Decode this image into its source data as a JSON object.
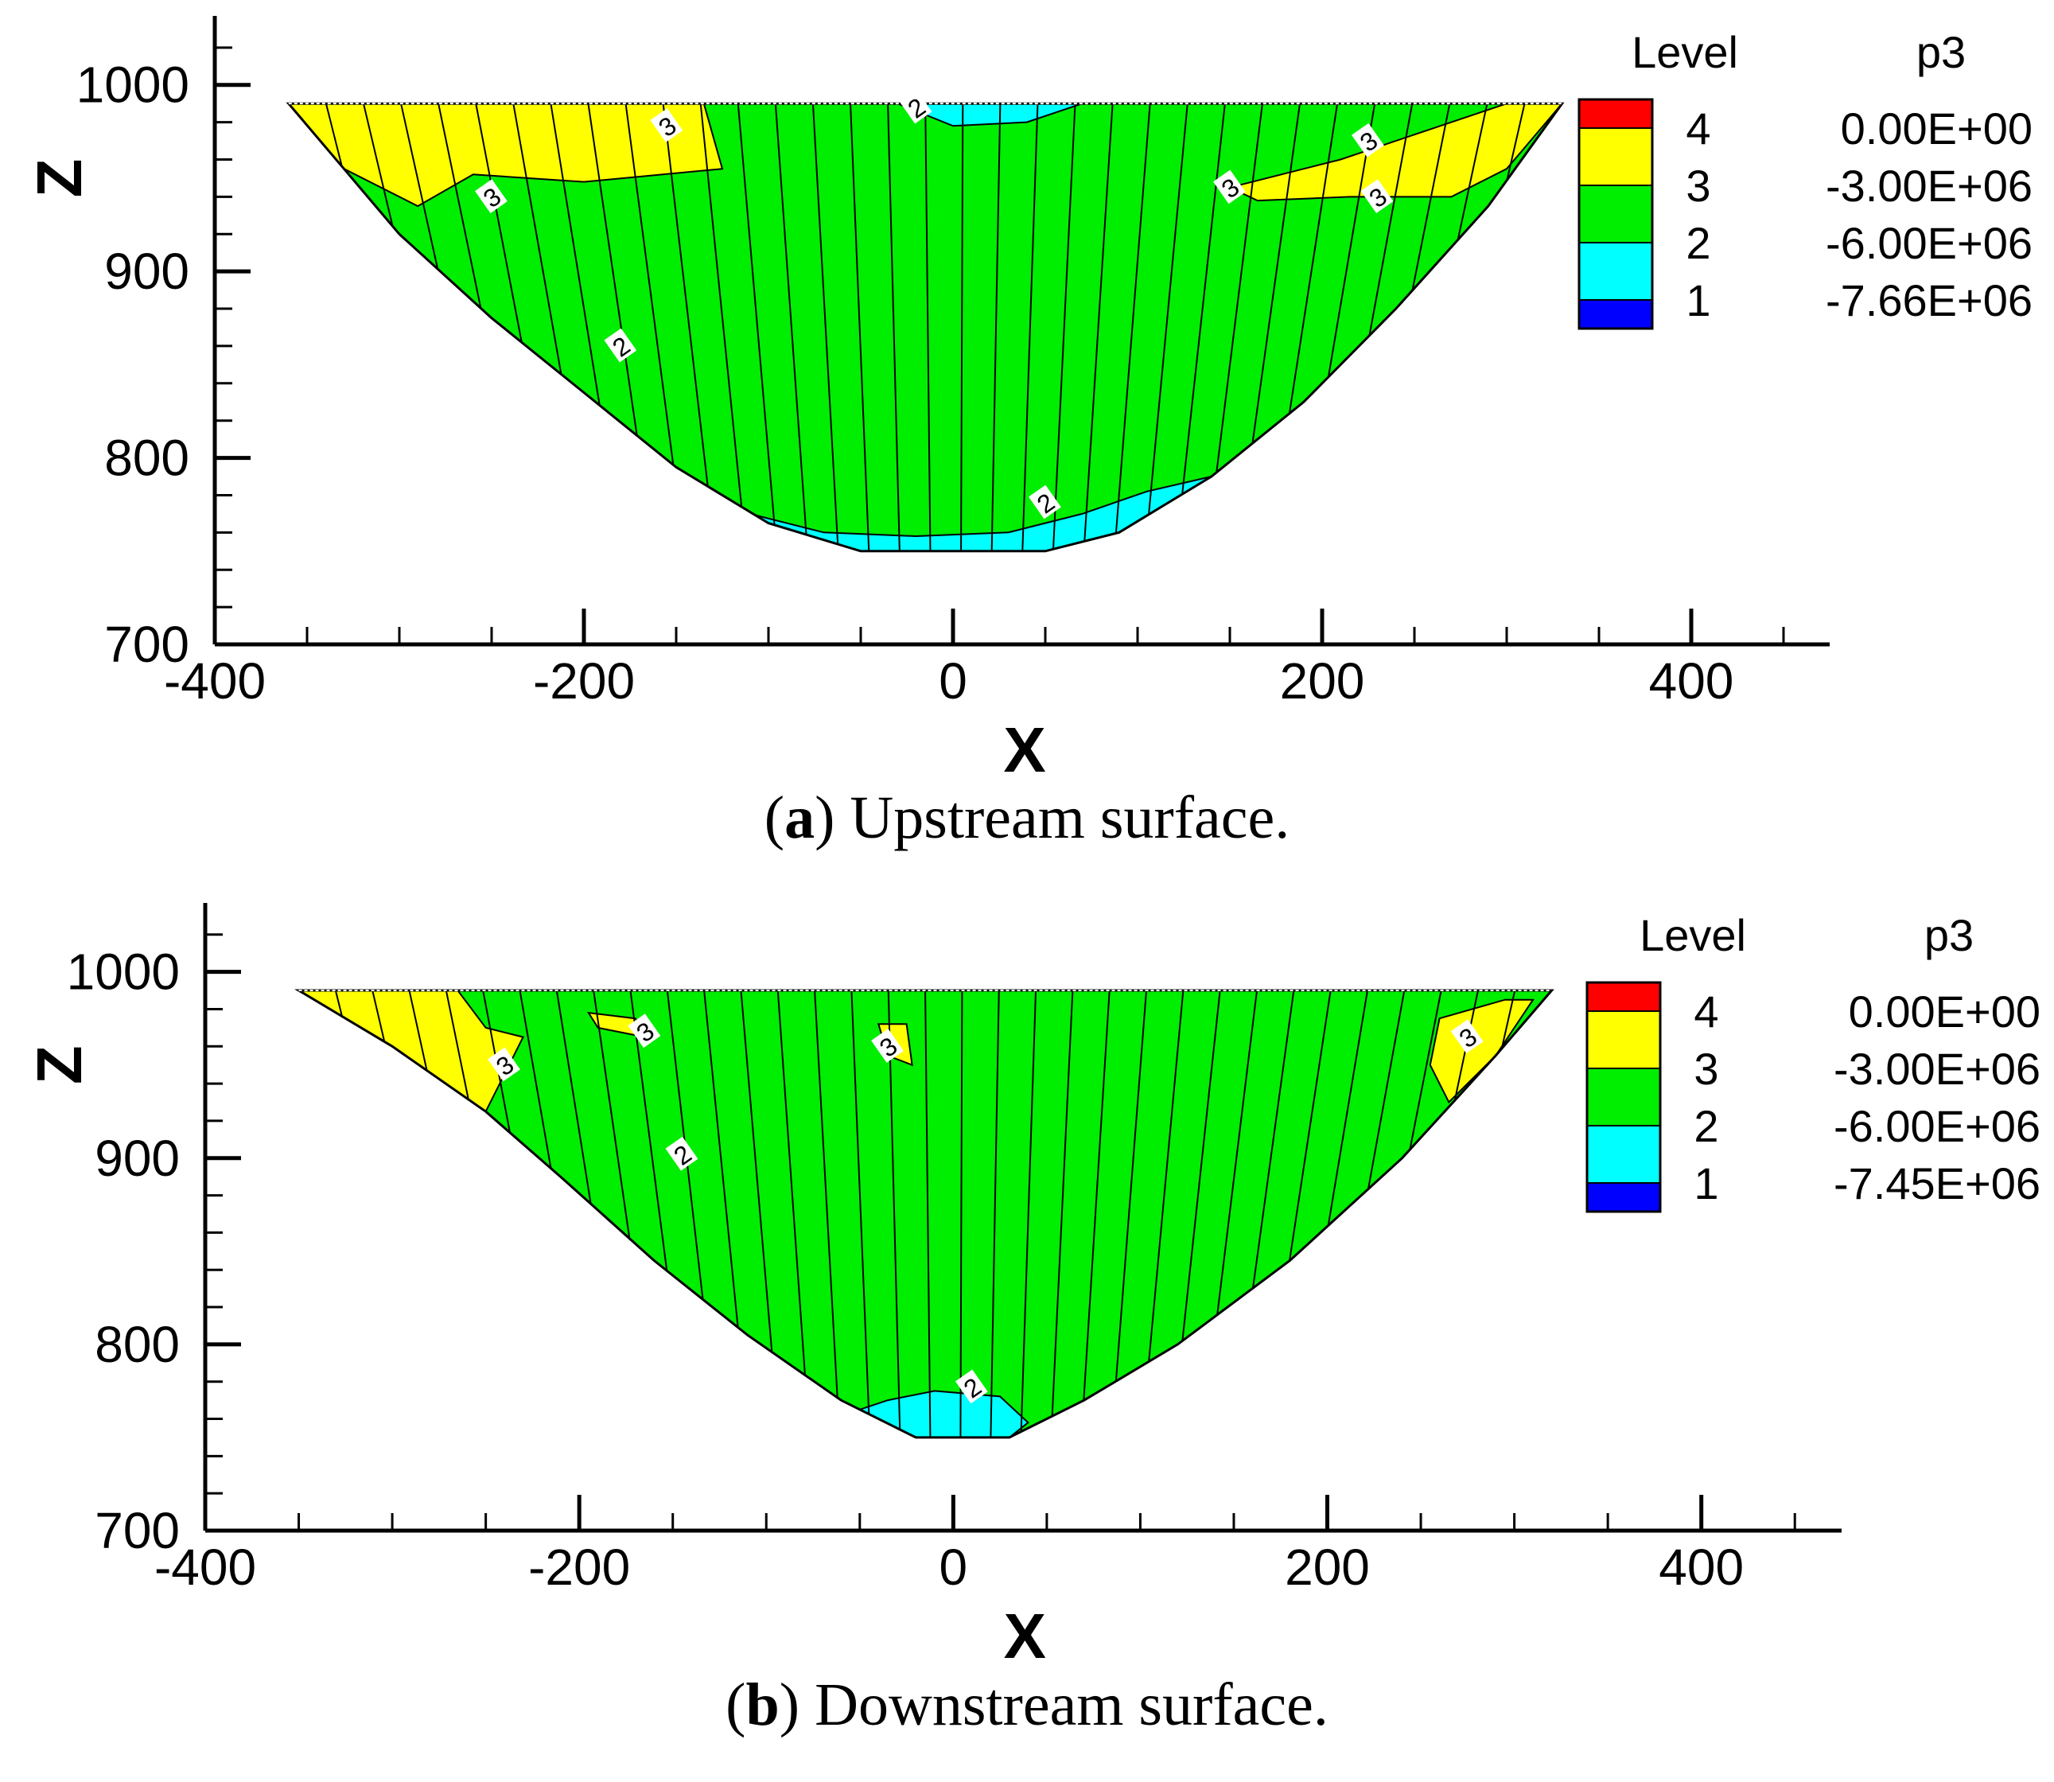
{
  "chart_data": [
    {
      "type": "contour",
      "panel_letter": "a",
      "caption": "Upstream surface.",
      "xlabel": "X",
      "ylabel": "Z",
      "xlim": [
        -400,
        475
      ],
      "ylim": [
        700,
        1037
      ],
      "x_ticks": [
        -400,
        -200,
        0,
        200,
        400
      ],
      "y_ticks": [
        700,
        800,
        900,
        1000
      ],
      "legend": {
        "header_level": "Level",
        "header_var": "p3",
        "levels": [
          {
            "level": "4",
            "value": "0.00E+00",
            "color": "#ff0000"
          },
          {
            "level": "3",
            "value": "-3.00E+06",
            "color": "#ffff00"
          },
          {
            "level": "2",
            "value": "-6.00E+06",
            "color": "#00ff00"
          },
          {
            "level": "1",
            "value": "-7.66E+06",
            "color": "#0000ff"
          }
        ],
        "band_colors": [
          "#ff0000",
          "#ffff00",
          "#00ee00",
          "#00ffff",
          "#0000ff"
        ]
      },
      "outline": [
        [
          -360,
          990
        ],
        [
          330,
          990
        ],
        [
          290,
          935
        ],
        [
          240,
          880
        ],
        [
          190,
          830
        ],
        [
          140,
          790
        ],
        [
          90,
          760
        ],
        [
          50,
          750
        ],
        [
          -50,
          750
        ],
        [
          -100,
          765
        ],
        [
          -150,
          795
        ],
        [
          -200,
          835
        ],
        [
          -250,
          875
        ],
        [
          -300,
          920
        ],
        [
          -330,
          955
        ]
      ],
      "regions": [
        {
          "zone": 3,
          "points": [
            [
              -360,
              990
            ],
            [
              -135,
              990
            ],
            [
              -125,
              955
            ],
            [
              -200,
              948
            ],
            [
              -260,
              952
            ],
            [
              -290,
              935
            ],
            [
              -330,
              955
            ]
          ]
        },
        {
          "zone": 3,
          "points": [
            [
              150,
              945
            ],
            [
              210,
              960
            ],
            [
              255,
              975
            ],
            [
              300,
              990
            ],
            [
              330,
              990
            ],
            [
              300,
              955
            ],
            [
              270,
              940
            ],
            [
              215,
              940
            ],
            [
              165,
              938
            ]
          ]
        },
        {
          "zone": 2,
          "points": [
            [
              -30,
              990
            ],
            [
              70,
              990
            ],
            [
              40,
              980
            ],
            [
              0,
              978
            ]
          ]
        },
        {
          "zone": 2,
          "points": [
            [
              -200,
              835
            ],
            [
              -150,
              795
            ],
            [
              -100,
              765
            ],
            [
              -50,
              750
            ],
            [
              50,
              750
            ],
            [
              90,
              760
            ],
            [
              140,
              790
            ],
            [
              105,
              782
            ],
            [
              70,
              770
            ],
            [
              30,
              760
            ],
            [
              -20,
              758
            ],
            [
              -70,
              760
            ],
            [
              -110,
              770
            ],
            [
              -150,
              785
            ],
            [
              -180,
              810
            ],
            [
              -200,
              835
            ]
          ]
        }
      ],
      "contour_labels": [
        {
          "x": -20,
          "z": 988,
          "text": "2"
        },
        {
          "x": -155,
          "z": 978,
          "text": "3"
        },
        {
          "x": -250,
          "z": 940,
          "text": "3"
        },
        {
          "x": 150,
          "z": 945,
          "text": "3"
        },
        {
          "x": 225,
          "z": 970,
          "text": "3"
        },
        {
          "x": 230,
          "z": 940,
          "text": "3"
        },
        {
          "x": -180,
          "z": 860,
          "text": "2"
        },
        {
          "x": 50,
          "z": 776,
          "text": "2"
        }
      ]
    },
    {
      "type": "contour",
      "panel_letter": "b",
      "caption": "Downstream surface.",
      "xlabel": "X",
      "ylabel": "Z",
      "xlim": [
        -400,
        475
      ],
      "ylim": [
        700,
        1037
      ],
      "x_ticks": [
        -400,
        -200,
        0,
        200,
        400
      ],
      "y_ticks": [
        700,
        800,
        900,
        1000
      ],
      "legend": {
        "header_level": "Level",
        "header_var": "p3",
        "levels": [
          {
            "level": "4",
            "value": "0.00E+00",
            "color": "#ff0000"
          },
          {
            "level": "3",
            "value": "-3.00E+06",
            "color": "#ffff00"
          },
          {
            "level": "2",
            "value": "-6.00E+06",
            "color": "#00ff00"
          },
          {
            "level": "1",
            "value": "-7.45E+06",
            "color": "#0000ff"
          }
        ],
        "band_colors": [
          "#ff0000",
          "#ffff00",
          "#00ee00",
          "#00ffff",
          "#0000ff"
        ]
      },
      "outline": [
        [
          -350,
          990
        ],
        [
          320,
          990
        ],
        [
          290,
          955
        ],
        [
          240,
          900
        ],
        [
          180,
          845
        ],
        [
          120,
          800
        ],
        [
          70,
          770
        ],
        [
          30,
          750
        ],
        [
          -20,
          750
        ],
        [
          -60,
          770
        ],
        [
          -110,
          805
        ],
        [
          -160,
          845
        ],
        [
          -210,
          890
        ],
        [
          -250,
          925
        ],
        [
          -300,
          960
        ]
      ],
      "regions": [
        {
          "zone": 3,
          "points": [
            [
              -350,
              990
            ],
            [
              -265,
              990
            ],
            [
              -250,
              970
            ],
            [
              -230,
              965
            ],
            [
              -240,
              945
            ],
            [
              -250,
              925
            ],
            [
              -300,
              960
            ]
          ]
        },
        {
          "zone": 3,
          "points": [
            [
              -195,
              978
            ],
            [
              -170,
              975
            ],
            [
              -165,
              965
            ],
            [
              -190,
              970
            ]
          ]
        },
        {
          "zone": 3,
          "points": [
            [
              -40,
              972
            ],
            [
              -25,
              972
            ],
            [
              -22,
              950
            ],
            [
              -35,
              955
            ]
          ]
        },
        {
          "zone": 3,
          "points": [
            [
              260,
              975
            ],
            [
              295,
              985
            ],
            [
              310,
              985
            ],
            [
              290,
              955
            ],
            [
              265,
              930
            ],
            [
              255,
              950
            ]
          ]
        },
        {
          "zone": 2,
          "points": [
            [
              -30,
              750
            ],
            [
              30,
              750
            ],
            [
              40,
              758
            ],
            [
              25,
              772
            ],
            [
              -10,
              775
            ],
            [
              -35,
              770
            ],
            [
              -50,
              765
            ]
          ]
        }
      ],
      "contour_labels": [
        {
          "x": -240,
          "z": 950,
          "text": "3"
        },
        {
          "x": -165,
          "z": 968,
          "text": "3"
        },
        {
          "x": -35,
          "z": 960,
          "text": "3"
        },
        {
          "x": 275,
          "z": 965,
          "text": "3"
        },
        {
          "x": -145,
          "z": 902,
          "text": "2"
        },
        {
          "x": 10,
          "z": 777,
          "text": "2"
        }
      ]
    }
  ]
}
